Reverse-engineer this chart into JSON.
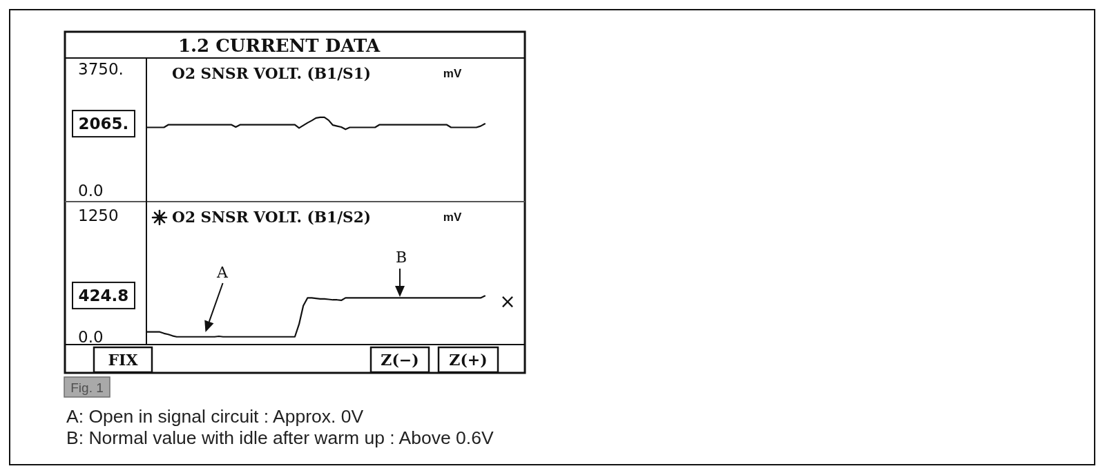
{
  "chart_data": [
    {
      "type": "line",
      "title": "1.2 CURRENT DATA",
      "ylabel": "mV",
      "categories": [
        null,
        null,
        null,
        null,
        null,
        null,
        null,
        null,
        null,
        null,
        null,
        null,
        null,
        null,
        null,
        null,
        null,
        null,
        null,
        null,
        null,
        null,
        null,
        null,
        null,
        null,
        null,
        null,
        null,
        null,
        null,
        null,
        null,
        null,
        null,
        null,
        null,
        null,
        null,
        null,
        null,
        null,
        null,
        null,
        null,
        null,
        null,
        null,
        null,
        null,
        null,
        null,
        null,
        null,
        null,
        null,
        null,
        null,
        null,
        null,
        null,
        null,
        null,
        null,
        null,
        null,
        null,
        null,
        null,
        null,
        null,
        null,
        null,
        null,
        null,
        null,
        null,
        null,
        null,
        null,
        null
      ],
      "series": [
        {
          "name": "O2 SNSR VOLT. (B1/S1)",
          "color": "#111111",
          "values": [
            1950,
            1950,
            1950,
            1950,
            1950,
            2030,
            2030,
            2030,
            2030,
            2030,
            2030,
            2030,
            2030,
            2030,
            2030,
            2030,
            2030,
            2030,
            2030,
            2030,
            2030,
            1960,
            2030,
            2030,
            2030,
            2030,
            2030,
            2030,
            2030,
            2030,
            2030,
            2030,
            2030,
            2030,
            2030,
            2030,
            1930,
            2010,
            2090,
            2160,
            2240,
            2260,
            2260,
            2170,
            2020,
            1990,
            1960,
            1890,
            1950,
            1950,
            1950,
            1950,
            1950,
            1950,
            1950,
            2030,
            2030,
            2030,
            2030,
            2030,
            2030,
            2030,
            2030,
            2030,
            2030,
            2030,
            2030,
            2030,
            2030,
            2030,
            2030,
            2030,
            1950,
            1950,
            1950,
            1950,
            1950,
            1950,
            1950,
            1990,
            2060
          ]
        }
      ],
      "ylim": [
        -340,
        4090
      ],
      "yticks": [
        {
          "value": 3750,
          "label": "3750."
        },
        {
          "value": 2065,
          "label": "2065."
        },
        {
          "value": 0,
          "label": "0.0"
        }
      ],
      "tick_labels": "y"
    },
    {
      "type": "line",
      "ylabel": "mV",
      "categories": [
        null,
        null,
        null,
        null,
        null,
        null,
        null,
        null,
        null,
        null,
        null,
        null,
        null,
        null,
        null,
        null,
        null,
        null,
        null,
        null,
        null,
        null,
        null,
        null,
        null,
        null,
        null,
        null,
        null,
        null,
        null,
        null,
        null,
        null,
        null,
        null,
        null,
        null,
        null,
        null,
        null,
        null,
        null,
        null,
        null,
        null,
        null,
        null,
        null,
        null,
        null,
        null,
        null,
        null,
        null,
        null,
        null,
        null,
        null,
        null,
        null,
        null,
        null,
        null,
        null,
        null,
        null,
        null,
        null,
        null,
        null,
        null,
        null,
        null,
        null,
        null,
        null,
        null,
        null,
        null,
        null
      ],
      "series": [
        {
          "name": "O2 SNSR VOLT. (B1/S2)",
          "color": "#111111",
          "values": [
            50,
            50,
            50,
            50,
            35,
            25,
            10,
            0,
            0,
            0,
            0,
            0,
            0,
            0,
            0,
            0,
            0,
            5,
            0,
            0,
            0,
            0,
            0,
            0,
            0,
            0,
            0,
            0,
            0,
            0,
            0,
            0,
            0,
            0,
            0,
            0,
            130,
            320,
            400,
            400,
            395,
            390,
            390,
            385,
            380,
            380,
            375,
            400,
            400,
            400,
            400,
            400,
            400,
            400,
            400,
            400,
            400,
            400,
            400,
            400,
            400,
            400,
            400,
            400,
            400,
            400,
            400,
            400,
            400,
            400,
            400,
            400,
            400,
            400,
            400,
            400,
            400,
            400,
            400,
            400,
            420
          ]
        }
      ],
      "ylim": [
        -80,
        1390
      ],
      "yticks": [
        1250,
        424.8,
        {
          "value": 0,
          "label": "0.0"
        }
      ],
      "tick_labels": "y",
      "annotations": [
        "A",
        "B",
        "×",
        "FIX",
        "Z(−)",
        "Z(+)",
        "Fig. 1",
        "A: Open in signal circuit : Approx. 0V",
        "B: Normal value with idle after warm up : Above 0.6V"
      ]
    }
  ]
}
